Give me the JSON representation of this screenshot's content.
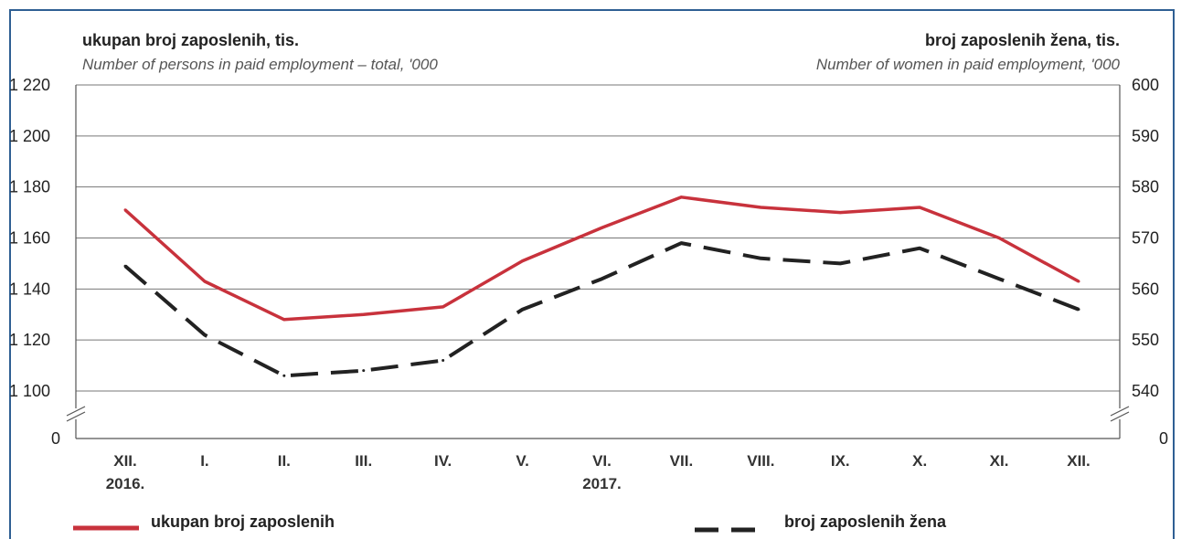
{
  "chart_data": {
    "type": "line",
    "title_left": "ukupan broj zaposlenih, tis.",
    "subtitle_left": "Number of persons in paid employment – total, '000",
    "title_right": "broj zaposlenih žena, tis.",
    "subtitle_right": "Number of women in paid employment, '000",
    "categories": [
      "XII.",
      "I.",
      "II.",
      "III.",
      "IV.",
      "V.",
      "VI.",
      "VII.",
      "VIII.",
      "IX.",
      "X.",
      "XI.",
      "XII."
    ],
    "year_labels": [
      {
        "index": 0,
        "label": "2016."
      },
      {
        "index": 6,
        "label": "2017."
      }
    ],
    "y_left": {
      "ticks": [
        1220,
        1200,
        1180,
        1160,
        1140,
        1120,
        1100
      ],
      "tick_labels": [
        "1 220",
        "1 200",
        "1 180",
        "1 160",
        "1 140",
        "1 120",
        "1 100"
      ],
      "zero_label": "0",
      "ylim": [
        1100,
        1220
      ]
    },
    "y_right": {
      "ticks": [
        600,
        590,
        580,
        570,
        560,
        550,
        540
      ],
      "tick_labels": [
        "600",
        "590",
        "580",
        "570",
        "560",
        "550",
        "540"
      ],
      "zero_label": "0",
      "ylim": [
        540,
        600
      ]
    },
    "series": [
      {
        "name": "ukupan broj zaposlenih",
        "axis": "left",
        "style": "solid",
        "color": "#c8323c",
        "values": [
          1171,
          1143,
          1128,
          1130,
          1133,
          1151,
          1164,
          1176,
          1172,
          1170,
          1172,
          1160,
          1143
        ]
      },
      {
        "name": "broj zaposlenih žena",
        "axis": "right",
        "style": "dashed",
        "color": "#222222",
        "values": [
          564.5,
          551,
          543,
          544,
          546,
          556,
          562,
          569,
          566,
          565,
          568,
          562,
          556
        ]
      }
    ],
    "grid": true,
    "legend_position": "bottom"
  }
}
